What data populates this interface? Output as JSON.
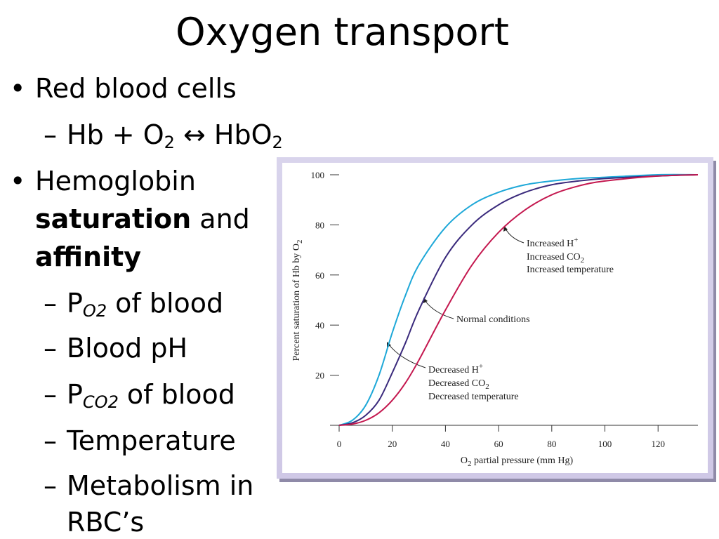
{
  "title": "Oxygen transport",
  "bullets": [
    {
      "parts": [
        "Red blood cells"
      ],
      "sub": [
        {
          "parts": [
            "Hb + O",
            "2",
            " ↔ HbO",
            "2"
          ]
        }
      ]
    },
    {
      "parts": [
        "Hemoglobin",
        "saturation",
        " and",
        "affinity"
      ],
      "sub": [
        {
          "parts": [
            "P",
            "O2",
            " of blood"
          ]
        },
        {
          "parts": [
            "Blood pH"
          ]
        },
        {
          "parts": [
            "P",
            "CO2",
            " of blood"
          ]
        },
        {
          "parts": [
            "Temperature"
          ]
        },
        {
          "parts": [
            "Metabolism in",
            "RBC’s"
          ]
        }
      ]
    }
  ],
  "chart_data": {
    "type": "line",
    "x_label": [
      "O",
      "2",
      " partial pressure (mm Hg)"
    ],
    "y_label": [
      "Percent saturation of Hb by O",
      "2"
    ],
    "x": [
      0,
      5,
      10,
      15,
      20,
      25,
      30,
      40,
      50,
      60,
      70,
      80,
      90,
      100,
      120,
      135
    ],
    "series": [
      {
        "color": "#1ea8d8",
        "values": [
          0,
          2,
          8,
          20,
          37,
          52,
          64,
          79,
          88,
          93,
          96,
          97.5,
          98.5,
          99,
          100,
          100
        ]
      },
      {
        "color": "#3a2a7c",
        "values": [
          0,
          1,
          4,
          10,
          21,
          33,
          46,
          67,
          80,
          88,
          93,
          96,
          97.5,
          98.5,
          99.5,
          100
        ]
      },
      {
        "color": "#c4184f",
        "values": [
          0,
          0.5,
          2,
          5,
          10,
          17,
          26,
          46,
          64,
          77,
          86,
          92,
          95.5,
          97.5,
          99.5,
          100
        ]
      }
    ],
    "xlim": [
      0,
      135
    ],
    "ylim": [
      0,
      100
    ],
    "xticks": [
      0,
      20,
      40,
      60,
      80,
      100,
      120
    ],
    "yticks": [
      20,
      40,
      60,
      80,
      100
    ],
    "annotations": [
      {
        "lines": [
          [
            "Increased H",
            "+"
          ],
          [
            "Increased CO",
            "2"
          ],
          [
            "Increased temperature"
          ]
        ]
      },
      {
        "lines": [
          [
            "Normal conditions"
          ]
        ]
      },
      {
        "lines": [
          [
            "Decreased H",
            "+"
          ],
          [
            "Decreased CO",
            "2"
          ],
          [
            "Decreased temperature"
          ]
        ]
      }
    ]
  }
}
